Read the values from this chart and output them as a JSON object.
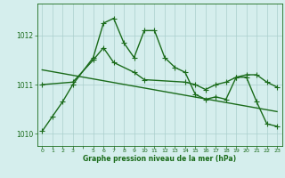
{
  "line1_x": [
    0,
    1,
    2,
    3,
    5,
    6,
    7,
    8,
    9,
    10,
    11,
    12,
    13,
    14,
    15,
    16,
    17,
    18,
    19,
    20,
    21,
    22,
    23
  ],
  "line1_y": [
    1010.05,
    1010.35,
    1010.65,
    1011.0,
    1011.55,
    1012.25,
    1012.35,
    1011.85,
    1011.55,
    1012.1,
    1012.1,
    1011.55,
    1011.35,
    1011.25,
    1010.8,
    1010.7,
    1010.75,
    1010.7,
    1011.15,
    1011.15,
    1010.65,
    1010.2,
    1010.15
  ],
  "line2_x": [
    0,
    3,
    5,
    6,
    7,
    9,
    10,
    14,
    15,
    16,
    17,
    18,
    19,
    20,
    21,
    22,
    23
  ],
  "line2_y": [
    1011.0,
    1011.05,
    1011.5,
    1011.75,
    1011.45,
    1011.25,
    1011.1,
    1011.05,
    1011.0,
    1010.9,
    1011.0,
    1011.05,
    1011.15,
    1011.2,
    1011.2,
    1011.05,
    1010.95
  ],
  "trend_x": [
    0,
    23
  ],
  "trend_y": [
    1011.3,
    1010.45
  ],
  "line_color": "#1a6b1a",
  "bg_color": "#d5eeed",
  "grid_color": "#aacfcc",
  "ylabel_ticks": [
    1010,
    1011,
    1012
  ],
  "xlabel": "Graphe pression niveau de la mer (hPa)",
  "xlim": [
    -0.5,
    23.5
  ],
  "ylim": [
    1009.75,
    1012.65
  ],
  "marker": "+",
  "markersize": 4,
  "linewidth": 1.0,
  "font_color": "#1a6b1a"
}
